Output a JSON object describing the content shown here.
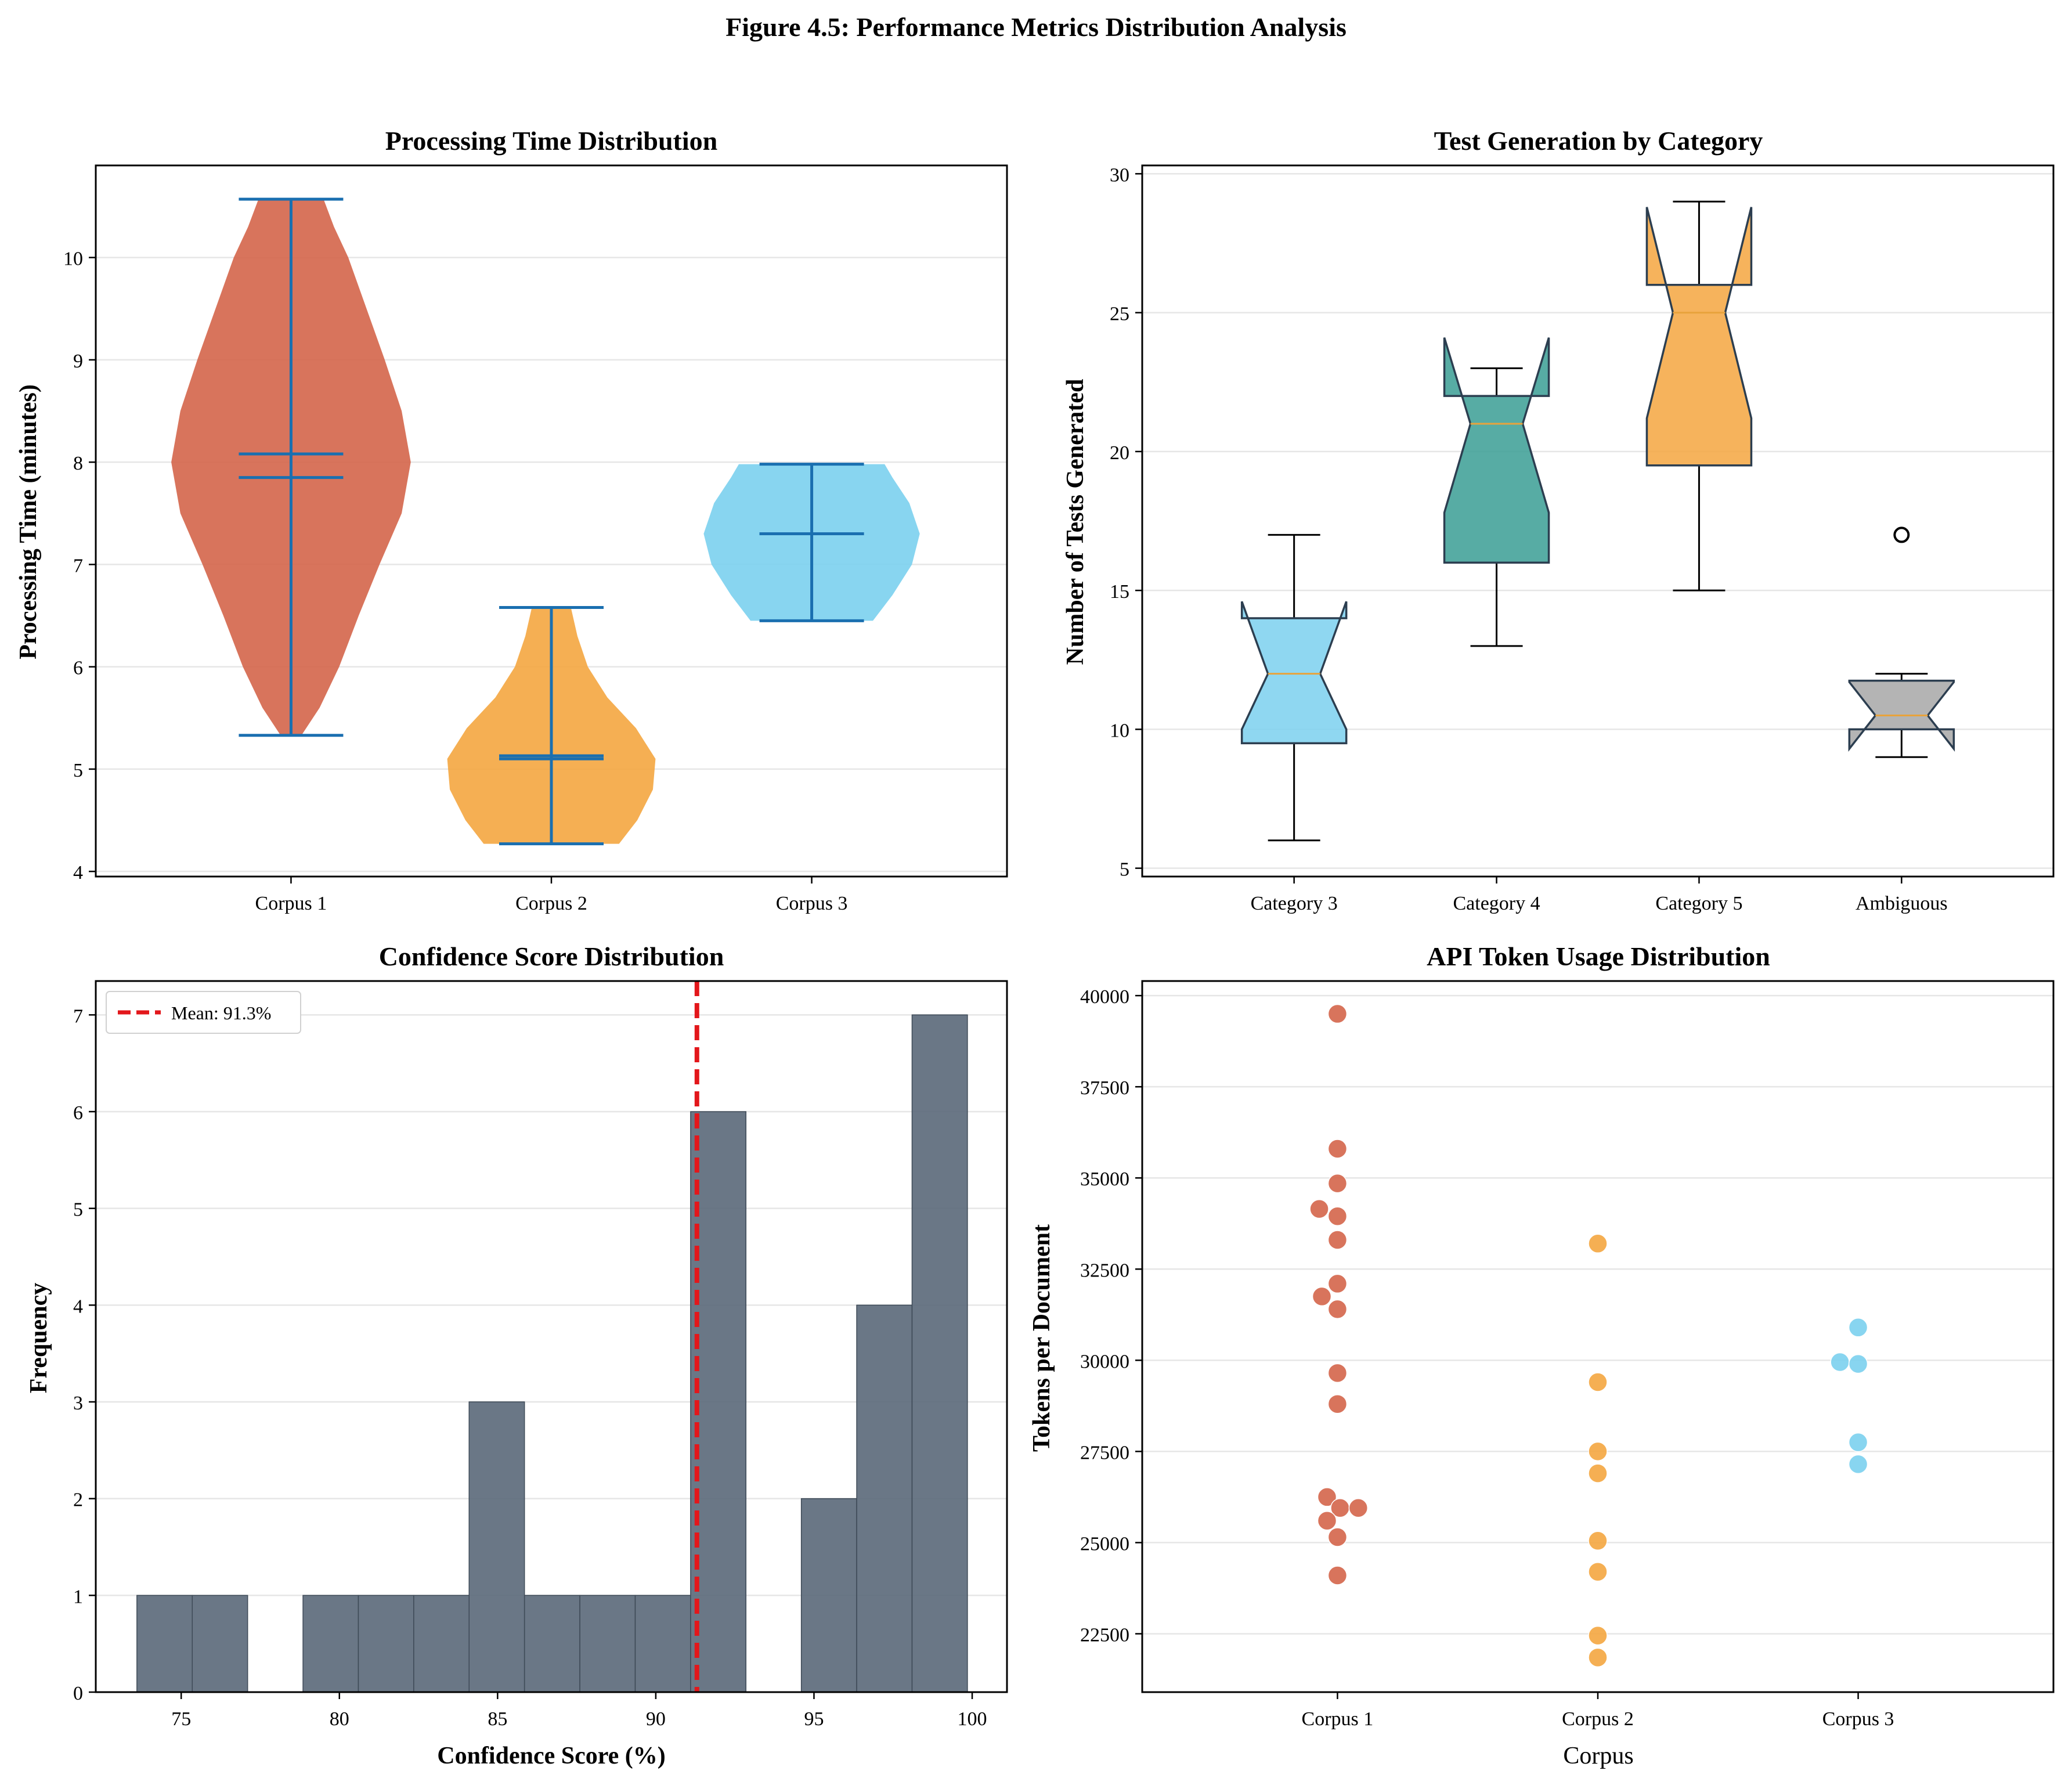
{
  "figure": {
    "title": "Figure 4.5: Performance Metrics Distribution Analysis"
  },
  "colors": {
    "corpus1": "#D4654A",
    "corpus2": "#F4A640",
    "corpus3": "#7BD0EE",
    "teal": "#3A9E94",
    "gray": "#A7A7A7",
    "violin_lines": "#1A6FB0",
    "box_edge": "#2C3E50",
    "median": "#E8A33C",
    "hist_bar": "#5D6B7C",
    "mean_line": "#E3171B",
    "grid": "#E6E6E6"
  },
  "chart_data": [
    {
      "type": "violin",
      "title": "Processing Time Distribution",
      "xlabel": "",
      "ylabel": "Processing Time (minutes)",
      "categories": [
        "Corpus 1",
        "Corpus 2",
        "Corpus 3"
      ],
      "ylim": [
        3.95,
        10.9
      ],
      "yticks": [
        4,
        5,
        6,
        7,
        8,
        9,
        10
      ],
      "grid": "y",
      "violins": [
        {
          "category": "Corpus 1",
          "min": 5.33,
          "max": 10.57,
          "mean": 8.08,
          "median": 7.85,
          "color": "corpus1",
          "density": [
            [
              5.33,
              0.08
            ],
            [
              5.6,
              0.22
            ],
            [
              6.0,
              0.37
            ],
            [
              6.5,
              0.52
            ],
            [
              7.0,
              0.68
            ],
            [
              7.5,
              0.85
            ],
            [
              8.0,
              0.92
            ],
            [
              8.5,
              0.85
            ],
            [
              9.0,
              0.72
            ],
            [
              9.5,
              0.58
            ],
            [
              10.0,
              0.44
            ],
            [
              10.3,
              0.33
            ],
            [
              10.57,
              0.25
            ]
          ]
        },
        {
          "category": "Corpus 2",
          "min": 4.27,
          "max": 6.58,
          "mean": 5.13,
          "median": 5.1,
          "color": "corpus2",
          "density": [
            [
              4.27,
              0.52
            ],
            [
              4.5,
              0.66
            ],
            [
              4.8,
              0.78
            ],
            [
              5.1,
              0.8
            ],
            [
              5.4,
              0.65
            ],
            [
              5.7,
              0.43
            ],
            [
              6.0,
              0.28
            ],
            [
              6.3,
              0.2
            ],
            [
              6.58,
              0.15
            ]
          ]
        },
        {
          "category": "Corpus 3",
          "min": 6.45,
          "max": 7.98,
          "mean": 7.3,
          "median": 7.3,
          "color": "corpus3",
          "density": [
            [
              6.45,
              0.47
            ],
            [
              6.7,
              0.62
            ],
            [
              7.0,
              0.77
            ],
            [
              7.3,
              0.83
            ],
            [
              7.6,
              0.75
            ],
            [
              7.85,
              0.62
            ],
            [
              7.98,
              0.56
            ]
          ]
        }
      ]
    },
    {
      "type": "box",
      "title": "Test Generation by Category",
      "xlabel": "",
      "ylabel": "Number of Tests Generated",
      "categories": [
        "Category 3",
        "Category 4",
        "Category 5",
        "Ambiguous"
      ],
      "ylim": [
        4.7,
        30.3
      ],
      "yticks": [
        5,
        10,
        15,
        20,
        25,
        30
      ],
      "grid": "y",
      "boxes": [
        {
          "category": "Category 3",
          "whisker_low": 6,
          "q1": 9.5,
          "median": 12,
          "q3": 14,
          "whisker_high": 17,
          "notch_low": 10.0,
          "notch_high": 14.6,
          "outliers": [],
          "color": "corpus3"
        },
        {
          "category": "Category 4",
          "whisker_low": 13,
          "q1": 16,
          "median": 21,
          "q3": 22,
          "whisker_high": 23,
          "notch_low": 17.8,
          "notch_high": 24.1,
          "outliers": [],
          "color": "teal"
        },
        {
          "category": "Category 5",
          "whisker_low": 15,
          "q1": 19.5,
          "median": 25,
          "q3": 26,
          "whisker_high": 29,
          "notch_low": 21.2,
          "notch_high": 28.8,
          "outliers": [],
          "color": "corpus2"
        },
        {
          "category": "Ambiguous",
          "whisker_low": 9,
          "q1": 10,
          "median": 10.5,
          "q3": 11.75,
          "whisker_high": 12,
          "notch_low": 9.3,
          "notch_high": 11.7,
          "outliers": [
            17
          ],
          "color": "gray"
        }
      ]
    },
    {
      "type": "histogram",
      "title": "Confidence Score Distribution",
      "xlabel": "Confidence Score (%)",
      "ylabel": "Frequency",
      "xlim": [
        72.3,
        101.1
      ],
      "ylim": [
        0,
        7.35
      ],
      "xticks": [
        75,
        80,
        85,
        90,
        95,
        100
      ],
      "yticks": [
        0,
        1,
        2,
        3,
        4,
        5,
        6,
        7
      ],
      "grid": "y",
      "bin_edges": [
        73.6,
        75.35,
        77.1,
        78.85,
        80.6,
        82.35,
        84.1,
        85.85,
        87.6,
        89.35,
        91.1,
        92.85,
        94.6,
        96.35,
        98.1,
        99.85
      ],
      "counts": [
        1,
        1,
        0,
        1,
        1,
        1,
        3,
        1,
        1,
        1,
        6,
        0,
        2,
        4,
        7
      ],
      "mean": 91.3,
      "legend": {
        "label": "Mean: 91.3%",
        "placement": "top-left"
      }
    },
    {
      "type": "scatter",
      "title": "API Token Usage Distribution",
      "xlabel": "Corpus",
      "ylabel": "Tokens per Document",
      "categories": [
        "Corpus 1",
        "Corpus 2",
        "Corpus 3"
      ],
      "ylim": [
        20900,
        40400
      ],
      "yticks": [
        22500,
        25000,
        27500,
        30000,
        32500,
        35000,
        37500,
        40000
      ],
      "grid": "y",
      "series": [
        {
          "category": "Corpus 1",
          "color": "corpus1",
          "points": [
            [
              0,
              39500
            ],
            [
              0,
              35800
            ],
            [
              0,
              34850
            ],
            [
              -0.07,
              34150
            ],
            [
              0,
              33950
            ],
            [
              0,
              33300
            ],
            [
              0,
              32100
            ],
            [
              -0.06,
              31750
            ],
            [
              0,
              31400
            ],
            [
              0,
              29650
            ],
            [
              0,
              28800
            ],
            [
              -0.04,
              26250
            ],
            [
              0.01,
              25950
            ],
            [
              0.08,
              25950
            ],
            [
              -0.04,
              25600
            ],
            [
              0,
              25150
            ],
            [
              0,
              24100
            ]
          ]
        },
        {
          "category": "Corpus 2",
          "color": "corpus2",
          "points": [
            [
              0,
              33200
            ],
            [
              0,
              29400
            ],
            [
              0,
              27500
            ],
            [
              0,
              26900
            ],
            [
              0,
              25050
            ],
            [
              0,
              24200
            ],
            [
              0,
              22450
            ],
            [
              0,
              21850
            ]
          ]
        },
        {
          "category": "Corpus 3",
          "color": "corpus3",
          "points": [
            [
              0,
              30900
            ],
            [
              -0.07,
              29950
            ],
            [
              0,
              29900
            ],
            [
              0,
              27750
            ],
            [
              0,
              27150
            ]
          ]
        }
      ]
    }
  ]
}
